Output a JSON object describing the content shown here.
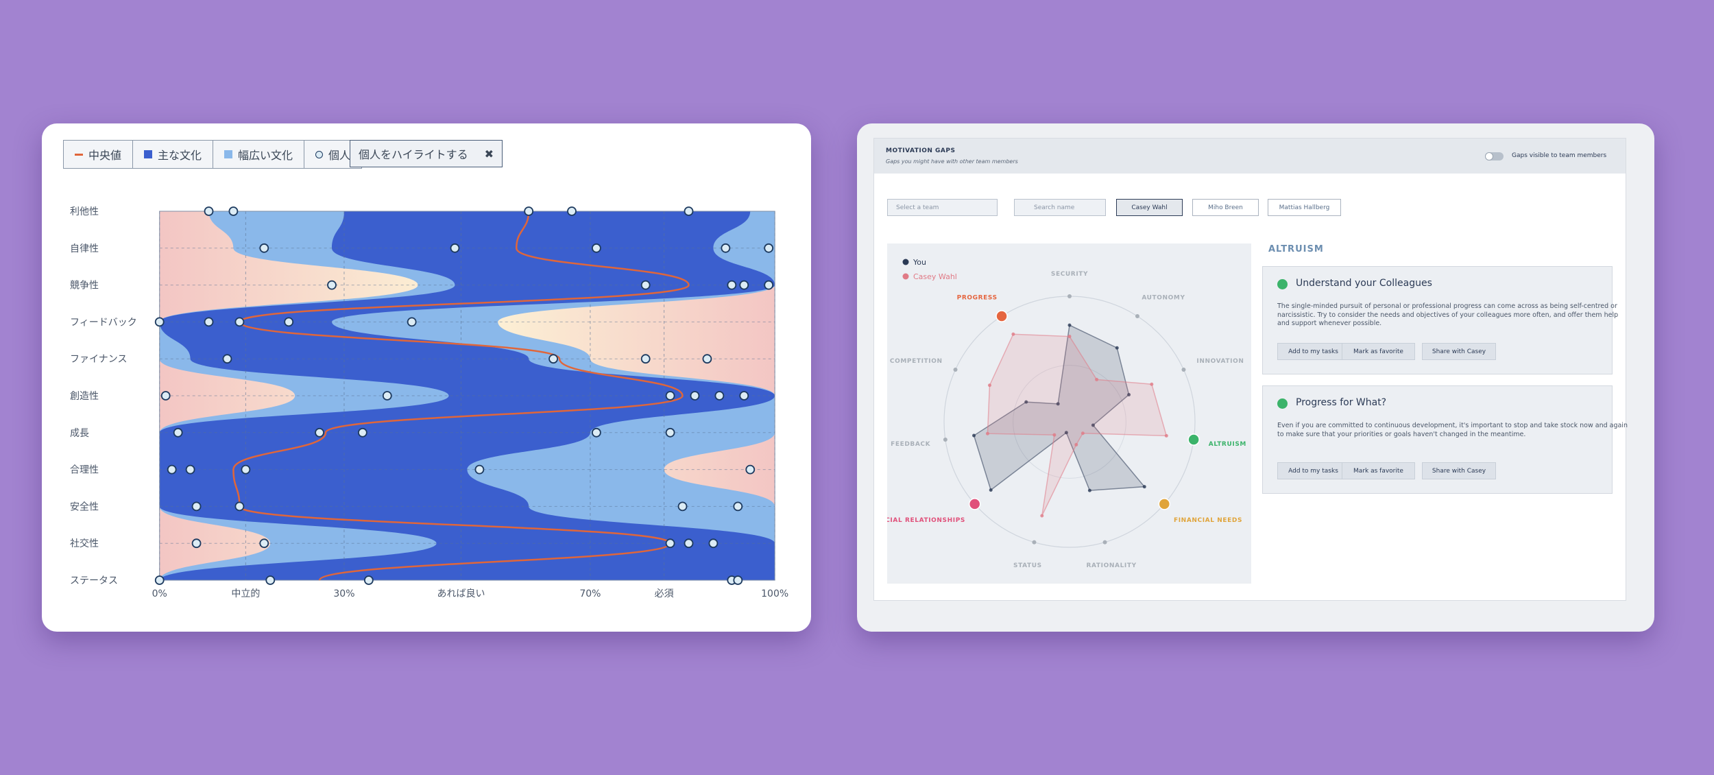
{
  "chart_data": [
    {
      "type": "stream",
      "categories": [
        "利他性",
        "自律性",
        "競争性",
        "フィードバック",
        "ファイナンス",
        "創造性",
        "成長",
        "合理性",
        "安全性",
        "社交性",
        "ステータス"
      ],
      "xlim": [
        0,
        100
      ],
      "xticks": [
        {
          "value": 0,
          "label": "0%"
        },
        {
          "value": 14,
          "label": "中立的"
        },
        {
          "value": 30,
          "label": "30%"
        },
        {
          "value": 49,
          "label": "あれば良い"
        },
        {
          "value": 70,
          "label": "70%"
        },
        {
          "value": 82,
          "label": "必須"
        },
        {
          "value": 100,
          "label": "100%"
        }
      ],
      "series": [
        {
          "name": "中央値",
          "color": "#e0663a",
          "values": [
            60,
            58,
            86,
            13,
            65,
            85,
            27,
            12,
            13,
            83,
            26
          ]
        },
        {
          "name": "主な文化",
          "color": "#3b5fce",
          "low": [
            30,
            28,
            48,
            0,
            5,
            47,
            0,
            0,
            0,
            45,
            0
          ],
          "high": [
            96,
            90,
            100,
            28,
            60,
            100,
            70,
            50,
            60,
            100,
            100
          ]
        },
        {
          "name": "幅広い文化",
          "color": "#8ab8ea",
          "low": [
            8,
            12,
            42,
            0,
            0,
            22,
            0,
            0,
            0,
            18,
            0
          ],
          "high": [
            100,
            100,
            100,
            55,
            70,
            100,
            100,
            82,
            100,
            100,
            100
          ]
        },
        {
          "name": "個人",
          "color": "#dcecf5",
          "points": [
            [
              8,
              12,
              60,
              67,
              86
            ],
            [
              17,
              48,
              71,
              92,
              99
            ],
            [
              28,
              79,
              93,
              95,
              99
            ],
            [
              0,
              8,
              13,
              21,
              41
            ],
            [
              11,
              64,
              79,
              89
            ],
            [
              1,
              37,
              83,
              87,
              91,
              95
            ],
            [
              3,
              26,
              33,
              71,
              83
            ],
            [
              2,
              5,
              14,
              52,
              96
            ],
            [
              6,
              13,
              85,
              94
            ],
            [
              6,
              17,
              83,
              86,
              90
            ],
            [
              0,
              18,
              34,
              93,
              94
            ]
          ]
        }
      ]
    },
    {
      "type": "radar",
      "categories": [
        "SECURITY",
        "AUTONOMY",
        "INNOVATION",
        "ALTRUISM",
        "FINANCIAL NEEDS",
        "RATIONALITY",
        "STATUS",
        "SOCIAL RELATIONSHIPS",
        "FEEDBACK",
        "COMPETITION",
        "PROGRESS"
      ],
      "axis_colors": [
        "#a9b0b8",
        "#a9b0b8",
        "#a9b0b8",
        "#3bb36a",
        "#e0a43a",
        "#a9b0b8",
        "#a9b0b8",
        "#e0507a",
        "#a9b0b8",
        "#a9b0b8",
        "#e5653f"
      ],
      "rlim": [
        0,
        100
      ],
      "series": [
        {
          "name": "You",
          "color": "#2b3a55",
          "values": [
            77,
            70,
            52,
            19,
            79,
            57,
            9,
            83,
            77,
            38,
            17
          ]
        },
        {
          "name": "Casey Wahl",
          "color": "#e07a86",
          "values": [
            68,
            40,
            72,
            78,
            14,
            19,
            78,
            16,
            66,
            70,
            83
          ]
        }
      ]
    }
  ],
  "ui": {
    "highlight_button": "個人をハイライトする",
    "close": "✖",
    "header_title": "MOTIVATION GAPS",
    "header_subtitle": "Gaps you might have with other team members",
    "toggle_label": "Gaps visible to team members",
    "team_select": "Select a team",
    "search": "Search name",
    "people": [
      "Casey Wahl",
      "Miho Breen",
      "Mattias Hallberg"
    ],
    "section": "ALTRUISM",
    "cards": [
      {
        "title": "Understand your Colleagues",
        "body_lines": [
          "The single-minded pursuit of personal or professional progress can come across as being self-centred or",
          "narcissistic. Try to consider the needs and objectives of your colleagues more often, and offer them help",
          "and support whenever possible."
        ],
        "buttons": [
          "Add to my tasks",
          "Mark as favorite",
          "Share with Casey"
        ]
      },
      {
        "title": "Progress for What?",
        "body_lines": [
          "Even if you are committed to continuous development, it's important to stop and take stock now and again",
          "to make sure that your priorities or goals haven't changed in the meantime."
        ],
        "buttons": [
          "Add to my tasks",
          "Mark as favorite",
          "Share with Casey"
        ]
      }
    ]
  }
}
